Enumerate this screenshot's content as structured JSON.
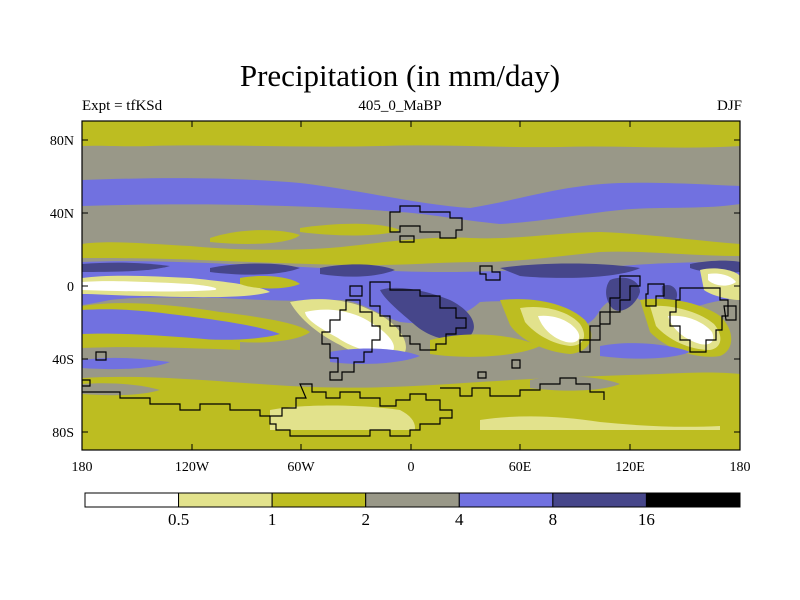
{
  "title": "Precipitation (in mm/day)",
  "subtitle_left": "Expt = tfKSd",
  "subtitle_center": "405_0_MaBP",
  "subtitle_right": "DJF",
  "x_ticks": [
    "180",
    "120W",
    "60W",
    "0",
    "60E",
    "120E",
    "180"
  ],
  "y_ticks": [
    "80N",
    "40N",
    "0",
    "40S",
    "80S"
  ],
  "colorbar": {
    "levels": [
      "0.5",
      "1",
      "2",
      "4",
      "8",
      "16"
    ],
    "colors": [
      "#ffffff",
      "#e2e28c",
      "#bdbd21",
      "#999888",
      "#7171e0",
      "#46468a",
      "#000000"
    ]
  },
  "colors": {
    "land_outline": "#000000",
    "frame": "#000000"
  }
}
